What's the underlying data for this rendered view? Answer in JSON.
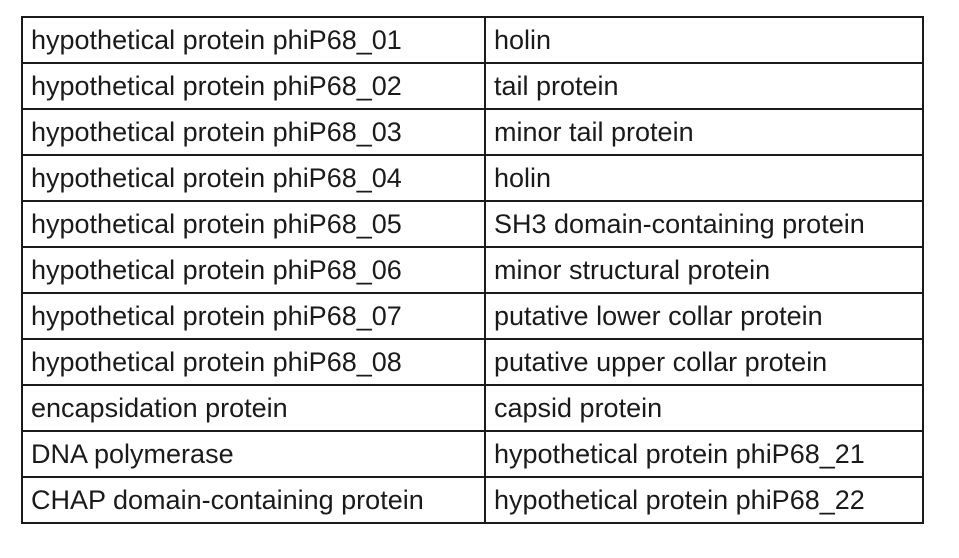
{
  "table": {
    "rows": [
      [
        "hypothetical protein phiP68_01",
        "holin"
      ],
      [
        "hypothetical protein phiP68_02",
        "tail protein"
      ],
      [
        "hypothetical protein phiP68_03",
        "minor tail protein"
      ],
      [
        "hypothetical protein phiP68_04",
        "holin"
      ],
      [
        "hypothetical protein phiP68_05",
        "SH3 domain-containing protein"
      ],
      [
        "hypothetical protein phiP68_06",
        "minor structural protein"
      ],
      [
        "hypothetical protein phiP68_07",
        "putative lower collar protein"
      ],
      [
        "hypothetical protein phiP68_08",
        "putative upper collar protein"
      ],
      [
        "encapsidation protein",
        "capsid protein"
      ],
      [
        "DNA polymerase",
        "hypothetical protein phiP68_21"
      ],
      [
        "CHAP domain-containing protein",
        "hypothetical protein phiP68_22"
      ]
    ]
  }
}
